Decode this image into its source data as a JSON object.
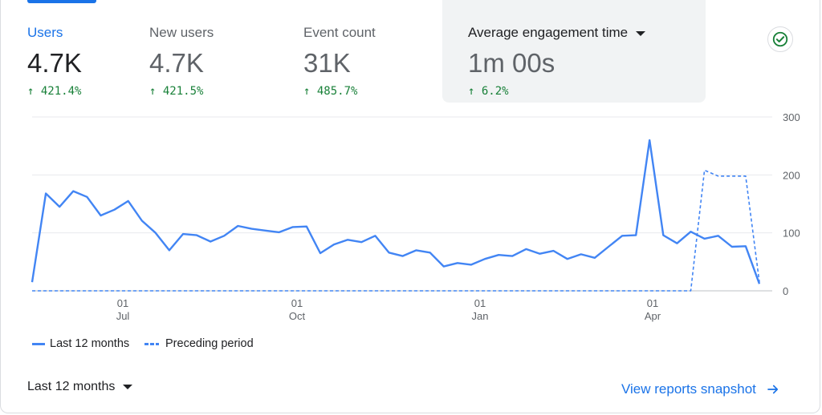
{
  "metrics": [
    {
      "label": "Users",
      "value": "4.7K",
      "change": "421.4%"
    },
    {
      "label": "New users",
      "value": "4.7K",
      "change": "421.5%"
    },
    {
      "label": "Event count",
      "value": "31K",
      "change": "485.7%"
    },
    {
      "label": "Average engagement time",
      "value": "1m 00s",
      "change": "6.2%"
    }
  ],
  "status_icon": "check-circle-icon",
  "chart_data": {
    "type": "line",
    "ylim": [
      0,
      300
    ],
    "y_ticks": [
      "300",
      "200",
      "100",
      "0"
    ],
    "x_tick_days": [
      "01",
      "01",
      "01",
      "01"
    ],
    "x_tick_months": [
      "Jul",
      "Oct",
      "Jan",
      "Apr"
    ],
    "grid": true,
    "legend_position": "bottom-left",
    "series": [
      {
        "name": "Last 12 months",
        "style": "solid",
        "color": "#4285f4",
        "values": [
          15,
          168,
          145,
          172,
          162,
          130,
          140,
          155,
          121,
          100,
          70,
          98,
          96,
          85,
          95,
          112,
          107,
          104,
          101,
          110,
          111,
          65,
          80,
          88,
          84,
          95,
          66,
          60,
          70,
          66,
          42,
          48,
          45,
          55,
          62,
          60,
          72,
          64,
          69,
          55,
          63,
          57,
          76,
          95,
          96,
          260,
          96,
          82,
          102,
          90,
          95,
          76,
          77,
          12
        ]
      },
      {
        "name": "Preceding period",
        "style": "dashed",
        "color": "#4285f4",
        "values": [
          0,
          0,
          0,
          0,
          0,
          0,
          0,
          0,
          0,
          0,
          0,
          0,
          0,
          0,
          0,
          0,
          0,
          0,
          0,
          0,
          0,
          0,
          0,
          0,
          0,
          0,
          0,
          0,
          0,
          0,
          0,
          0,
          0,
          0,
          0,
          0,
          0,
          0,
          0,
          0,
          0,
          0,
          0,
          0,
          0,
          0,
          0,
          0,
          0,
          208,
          198,
          198,
          198,
          15
        ]
      }
    ]
  },
  "footer": {
    "range_label": "Last 12 months",
    "link_label": "View reports snapshot"
  }
}
